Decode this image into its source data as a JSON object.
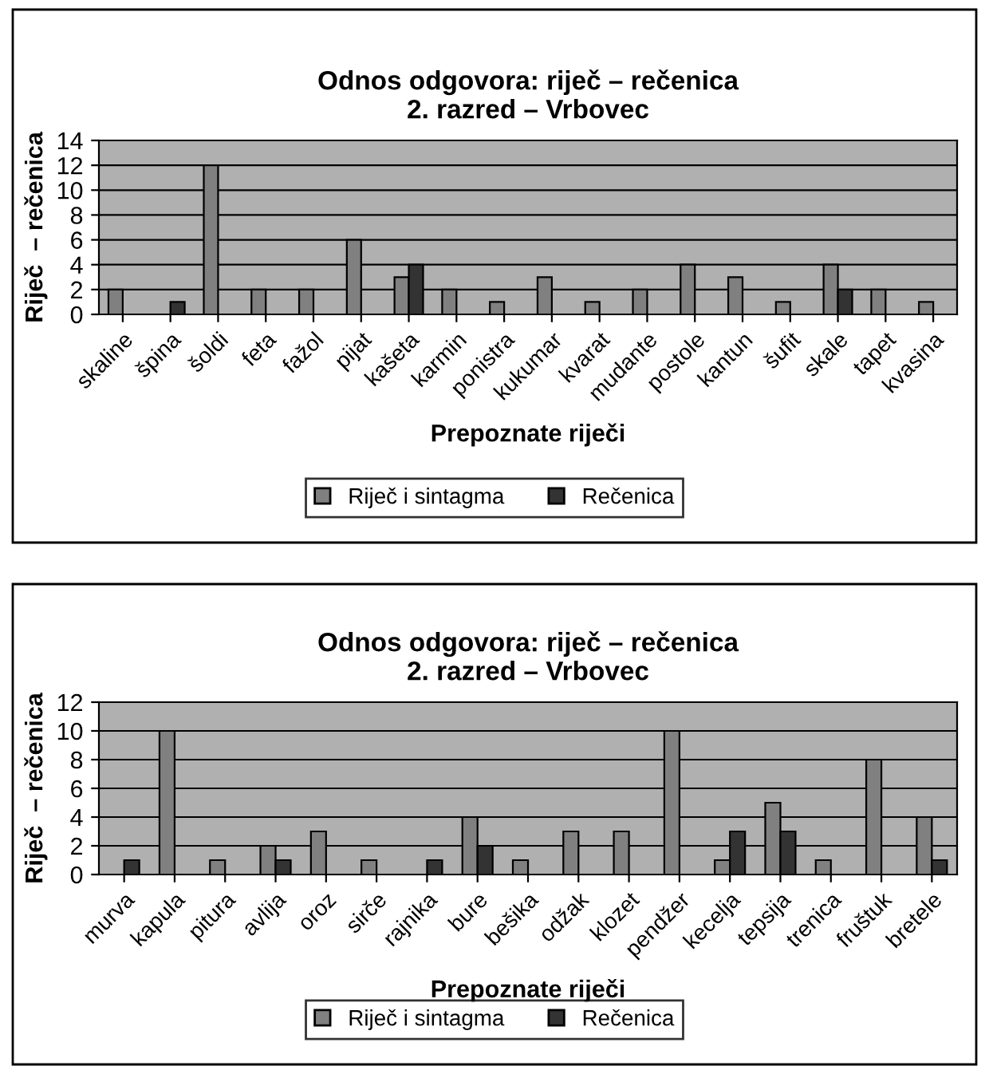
{
  "chart_data": [
    {
      "type": "bar",
      "title": "Odnos odgovora: riječ – rečenica\n2. razred – Vrbovec",
      "xlabel": "Prepoznate riječi",
      "ylabel": "Riječ  – rečenica",
      "categories": [
        "skaline",
        "špina",
        "šoldi",
        "feta",
        "fažol",
        "pijat",
        "kašeta",
        "karmin",
        "ponistra",
        "kukumar",
        "kvarat",
        "mudante",
        "postole",
        "kantun",
        "šufit",
        "skale",
        "tapet",
        "kvasina"
      ],
      "series": [
        {
          "name": "Riječ i sintagma",
          "color": "#808080",
          "values": [
            2,
            null,
            12,
            2,
            2,
            6,
            3,
            2,
            1,
            3,
            1,
            2,
            4,
            3,
            1,
            4,
            2,
            1
          ]
        },
        {
          "name": "Rečenica",
          "color": "#333333",
          "values": [
            null,
            1,
            null,
            null,
            null,
            null,
            4,
            null,
            null,
            null,
            null,
            null,
            null,
            null,
            null,
            2,
            null,
            null
          ]
        }
      ],
      "ylim": [
        0,
        14
      ],
      "yticks": [
        0,
        2,
        4,
        6,
        8,
        10,
        12,
        14
      ],
      "grid": "y",
      "legend": "bottom"
    },
    {
      "type": "bar",
      "title": "Odnos odgovora: riječ – rečenica\n2. razred – Vrbovec",
      "xlabel": "Prepoznate riječi",
      "ylabel": "Riječ  – rečenica",
      "categories": [
        "murva",
        "kapula",
        "pitura",
        "avlija",
        "oroz",
        "sirče",
        "rajnika",
        "bure",
        "bešika",
        "odžak",
        "klozet",
        "pendžer",
        "kecelja",
        "tepsija",
        "trenica",
        "fruštuk",
        "bretele"
      ],
      "series": [
        {
          "name": "Riječ i sintagma",
          "color": "#808080",
          "values": [
            null,
            10,
            1,
            2,
            3,
            1,
            null,
            4,
            1,
            3,
            3,
            10,
            1,
            5,
            1,
            8,
            4
          ]
        },
        {
          "name": "Rečenica",
          "color": "#333333",
          "values": [
            1,
            null,
            null,
            1,
            null,
            null,
            1,
            2,
            null,
            null,
            null,
            null,
            3,
            3,
            null,
            null,
            1
          ]
        }
      ],
      "ylim": [
        0,
        12
      ],
      "yticks": [
        0,
        2,
        4,
        6,
        8,
        10,
        12
      ],
      "grid": "y",
      "legend": "bottom"
    }
  ]
}
